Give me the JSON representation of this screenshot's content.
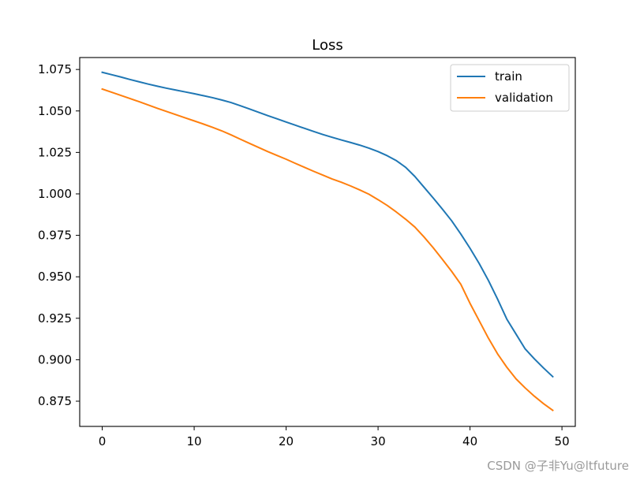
{
  "chart_data": {
    "type": "line",
    "title": "Loss",
    "xlabel": "",
    "ylabel": "",
    "xlim": [
      -2.45,
      51.45
    ],
    "ylim": [
      0.8598,
      1.0822
    ],
    "xticks": [
      0,
      10,
      20,
      30,
      40,
      50
    ],
    "yticks": [
      0.875,
      0.9,
      0.925,
      0.95,
      0.975,
      1.0,
      1.025,
      1.05,
      1.075
    ],
    "ytick_labels": [
      "0.875",
      "0.900",
      "0.925",
      "0.950",
      "0.975",
      "1.000",
      "1.025",
      "1.050",
      "1.075"
    ],
    "grid": false,
    "legend_position": "top-right",
    "x": [
      0,
      1,
      2,
      3,
      4,
      5,
      6,
      7,
      8,
      9,
      10,
      11,
      12,
      13,
      14,
      15,
      16,
      17,
      18,
      19,
      20,
      21,
      22,
      23,
      24,
      25,
      26,
      27,
      28,
      29,
      30,
      31,
      32,
      33,
      34,
      35,
      36,
      37,
      38,
      39,
      40,
      41,
      42,
      43,
      44,
      45,
      46,
      47,
      48,
      49
    ],
    "series": [
      {
        "name": "train",
        "color": "#1f77b4",
        "values": [
          1.0733,
          1.0719,
          1.0705,
          1.069,
          1.0676,
          1.0662,
          1.0649,
          1.0637,
          1.0626,
          1.0615,
          1.0604,
          1.0592,
          1.058,
          1.0566,
          1.0551,
          1.0532,
          1.0512,
          1.0492,
          1.0472,
          1.0453,
          1.0433,
          1.0414,
          1.0395,
          1.0376,
          1.0358,
          1.0341,
          1.0325,
          1.031,
          1.0294,
          1.0276,
          1.0255,
          1.023,
          1.02,
          1.016,
          1.0105,
          1.004,
          0.9975,
          0.9908,
          0.9838,
          0.9758,
          0.9672,
          0.958,
          0.9478,
          0.9365,
          0.9245,
          0.9155,
          0.9065,
          0.9005,
          0.895,
          0.8898
        ]
      },
      {
        "name": "validation",
        "color": "#ff7f0e",
        "values": [
          1.0632,
          1.0613,
          1.0594,
          1.0575,
          1.0556,
          1.0536,
          1.0516,
          1.0497,
          1.0478,
          1.0459,
          1.044,
          1.0421,
          1.0401,
          1.038,
          1.0356,
          1.033,
          1.0305,
          1.028,
          1.0255,
          1.0232,
          1.0209,
          1.0184,
          1.016,
          1.0136,
          1.0113,
          1.009,
          1.007,
          1.0048,
          1.0024,
          0.9998,
          0.9965,
          0.993,
          0.989,
          0.9847,
          0.98,
          0.974,
          0.9675,
          0.9605,
          0.9533,
          0.9455,
          0.934,
          0.9235,
          0.913,
          0.9035,
          0.8955,
          0.8885,
          0.883,
          0.878,
          0.8735,
          0.8695
        ]
      }
    ]
  },
  "watermark": "CSDN @子非Yu@ltfuture"
}
